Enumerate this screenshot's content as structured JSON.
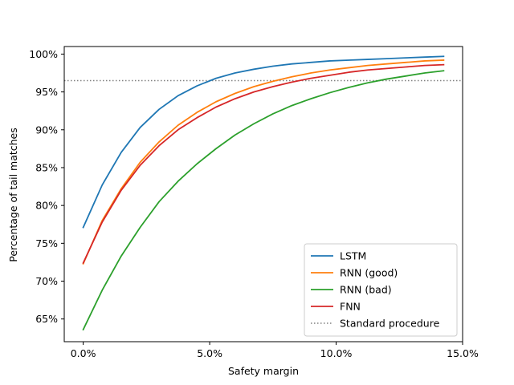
{
  "chart_data": {
    "type": "line",
    "title": "",
    "xlabel": "Safety margin",
    "ylabel": "Percentage of tail matches",
    "xlim": [
      -0.0075,
      0.15
    ],
    "ylim": [
      0.62,
      1.01
    ],
    "x_ticks": [
      {
        "value": 0.0,
        "label": "0.0%"
      },
      {
        "value": 0.05,
        "label": "5.0%"
      },
      {
        "value": 0.1,
        "label": "10.0%"
      },
      {
        "value": 0.15,
        "label": "15.0%"
      }
    ],
    "y_ticks": [
      {
        "value": 0.65,
        "label": "65%"
      },
      {
        "value": 0.7,
        "label": "70%"
      },
      {
        "value": 0.75,
        "label": "75%"
      },
      {
        "value": 0.8,
        "label": "80%"
      },
      {
        "value": 0.85,
        "label": "85%"
      },
      {
        "value": 0.9,
        "label": "90%"
      },
      {
        "value": 0.95,
        "label": "95%"
      },
      {
        "value": 1.0,
        "label": "100%"
      }
    ],
    "grid": false,
    "legend_position": "lower-right",
    "x": [
      0.0,
      0.0075,
      0.015,
      0.0225,
      0.03,
      0.0375,
      0.045,
      0.0525,
      0.06,
      0.0675,
      0.075,
      0.0825,
      0.09,
      0.0975,
      0.105,
      0.1125,
      0.12,
      0.1275,
      0.135,
      0.1425
    ],
    "series": [
      {
        "name": "LSTM",
        "color": "#1f77b4",
        "values": [
          0.771,
          0.827,
          0.87,
          0.903,
          0.927,
          0.945,
          0.958,
          0.968,
          0.975,
          0.98,
          0.984,
          0.987,
          0.989,
          0.991,
          0.992,
          0.993,
          0.994,
          0.995,
          0.996,
          0.997
        ]
      },
      {
        "name": "RNN (good)",
        "color": "#ff7f0e",
        "values": [
          0.723,
          0.78,
          0.822,
          0.857,
          0.884,
          0.906,
          0.923,
          0.937,
          0.948,
          0.957,
          0.964,
          0.97,
          0.975,
          0.979,
          0.982,
          0.985,
          0.987,
          0.989,
          0.991,
          0.992
        ]
      },
      {
        "name": "RNN (bad)",
        "color": "#2ca02c",
        "values": [
          0.636,
          0.688,
          0.733,
          0.771,
          0.805,
          0.832,
          0.855,
          0.875,
          0.893,
          0.908,
          0.921,
          0.932,
          0.941,
          0.949,
          0.956,
          0.962,
          0.967,
          0.971,
          0.975,
          0.978
        ]
      },
      {
        "name": "FNN",
        "color": "#d62728",
        "values": [
          0.724,
          0.778,
          0.82,
          0.853,
          0.879,
          0.9,
          0.916,
          0.93,
          0.941,
          0.95,
          0.957,
          0.963,
          0.968,
          0.972,
          0.976,
          0.979,
          0.981,
          0.983,
          0.985,
          0.986
        ]
      }
    ],
    "reference_lines": [
      {
        "name": "Standard procedure",
        "orientation": "horizontal",
        "value": 0.965,
        "color": "#808080",
        "style": "dotted"
      }
    ]
  }
}
